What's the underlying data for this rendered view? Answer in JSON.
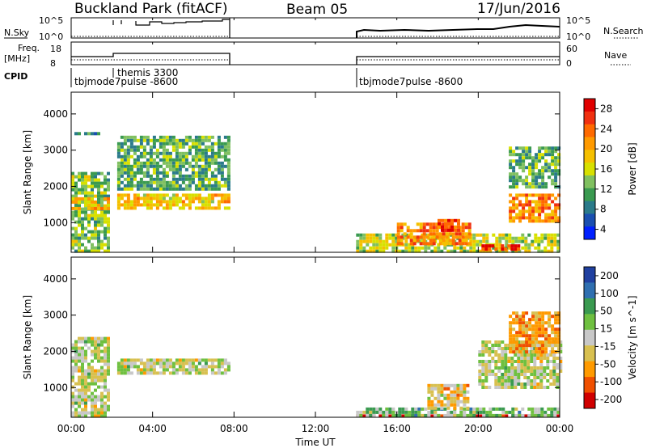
{
  "header": {
    "title": "Buckland Park (fitACF)",
    "beam": "Beam 05",
    "date": "17/Jun/2016"
  },
  "top_panels": {
    "nsky_label": "N.Sky",
    "nsky_ticks": [
      "10^5",
      "10^0"
    ],
    "nsearch_label": "N.Search",
    "nsearch_ticks": [
      "10^5",
      "10^0"
    ],
    "freq_label_line1": "Freq.",
    "freq_label_line2": "[MHz]",
    "freq_ticks": [
      "18",
      "8"
    ],
    "nave_label": "Nave",
    "nave_ticks": [
      "60",
      "0"
    ],
    "cpid_label": "CPID",
    "cpid_entries": [
      {
        "name": "tbjmode7pulse -8600",
        "start_hour": 0
      },
      {
        "name": "themis 3300",
        "start_hour": 2
      },
      {
        "name": "tbjmode7pulse -8600",
        "start_hour": 14
      }
    ]
  },
  "axes": {
    "xlabel": "Time UT",
    "x_ticks": [
      "00:00",
      "04:00",
      "08:00",
      "12:00",
      "16:00",
      "20:00",
      "00:00"
    ],
    "ylabel": "Slant Range [km]",
    "y_ticks": [
      "1000",
      "2000",
      "3000",
      "4000"
    ]
  },
  "power_colorbar": {
    "label": "Power [dB]",
    "ticks": [
      "28",
      "24",
      "20",
      "16",
      "12",
      "8",
      "4"
    ],
    "colors": [
      "#e00000",
      "#f03010",
      "#ff6a00",
      "#ff9a00",
      "#f5c000",
      "#d8e000",
      "#80c060",
      "#3a9a50",
      "#2a7a8a",
      "#1a4fb0",
      "#0020ff"
    ]
  },
  "velocity_colorbar": {
    "label": "Velocity [m s^-1]",
    "ticks": [
      "200",
      "100",
      "50",
      "15",
      "-15",
      "-50",
      "-100",
      "-200"
    ],
    "colors": [
      "#2040a0",
      "#2f6fb0",
      "#3a9a50",
      "#6fc040",
      "#c8c8c8",
      "#d8c050",
      "#ff9a00",
      "#f05000",
      "#d00000"
    ]
  },
  "chart_data": [
    {
      "type": "heatmap",
      "title": "Power [dB]",
      "xlabel": "Time UT",
      "ylabel": "Slant Range [km]",
      "xlim": [
        0,
        24
      ],
      "ylim": [
        180,
        4600
      ],
      "x_ticks": [
        "00:00",
        "04:00",
        "08:00",
        "12:00",
        "16:00",
        "20:00",
        "00:00"
      ],
      "y_ticks": [
        1000,
        2000,
        3000,
        4000
      ],
      "colorbar_range": [
        0,
        30
      ],
      "data_gaps_hours": [
        [
          1.95,
          2.15
        ],
        [
          7.7,
          13.95
        ]
      ],
      "regions": [
        {
          "t": [
            0.0,
            1.9
          ],
          "r": [
            200,
            2400
          ],
          "value": 12
        },
        {
          "t": [
            0.0,
            1.9
          ],
          "r": [
            1400,
            1700
          ],
          "value": 18
        },
        {
          "t": [
            0.0,
            1.5
          ],
          "r": [
            3450,
            3500
          ],
          "value": 6
        },
        {
          "t": [
            2.1,
            7.7
          ],
          "r": [
            1400,
            1800
          ],
          "value": 18
        },
        {
          "t": [
            2.1,
            7.7
          ],
          "r": [
            1900,
            3400
          ],
          "value": 10
        },
        {
          "t": [
            14.0,
            24.0
          ],
          "r": [
            200,
            700
          ],
          "value": 14
        },
        {
          "t": [
            16.0,
            19.5
          ],
          "r": [
            400,
            1000
          ],
          "value": 22
        },
        {
          "t": [
            18.0,
            19.0
          ],
          "r": [
            800,
            1100
          ],
          "value": 26
        },
        {
          "t": [
            20.0,
            22.0
          ],
          "r": [
            250,
            400
          ],
          "value": 28
        },
        {
          "t": [
            21.5,
            24.0
          ],
          "r": [
            1000,
            1800
          ],
          "value": 22
        },
        {
          "t": [
            21.5,
            24.0
          ],
          "r": [
            2000,
            3100
          ],
          "value": 10
        }
      ]
    },
    {
      "type": "heatmap",
      "title": "Velocity [m s^-1]",
      "xlabel": "Time UT",
      "ylabel": "Slant Range [km]",
      "xlim": [
        0,
        24
      ],
      "ylim": [
        180,
        4600
      ],
      "x_ticks": [
        "00:00",
        "04:00",
        "08:00",
        "12:00",
        "16:00",
        "20:00",
        "00:00"
      ],
      "y_ticks": [
        1000,
        2000,
        3000,
        4000
      ],
      "colorbar_range": [
        -200,
        200
      ],
      "data_gaps_hours": [
        [
          1.95,
          2.15
        ],
        [
          7.7,
          13.95
        ]
      ],
      "regions": [
        {
          "t": [
            0.0,
            1.9
          ],
          "r": [
            200,
            2400
          ],
          "value": 0
        },
        {
          "t": [
            2.1,
            7.7
          ],
          "r": [
            1400,
            1800
          ],
          "value": 0
        },
        {
          "t": [
            14.0,
            24.0
          ],
          "r": [
            180,
            260
          ],
          "value": -200
        },
        {
          "t": [
            14.0,
            24.0
          ],
          "r": [
            260,
            450
          ],
          "value": 50
        },
        {
          "t": [
            17.5,
            19.5
          ],
          "r": [
            400,
            1100
          ],
          "value": -50
        },
        {
          "t": [
            20.0,
            24.0
          ],
          "r": [
            1000,
            2300
          ],
          "value": 0
        },
        {
          "t": [
            21.5,
            24.0
          ],
          "r": [
            2000,
            3100
          ],
          "value": -100
        }
      ]
    }
  ]
}
